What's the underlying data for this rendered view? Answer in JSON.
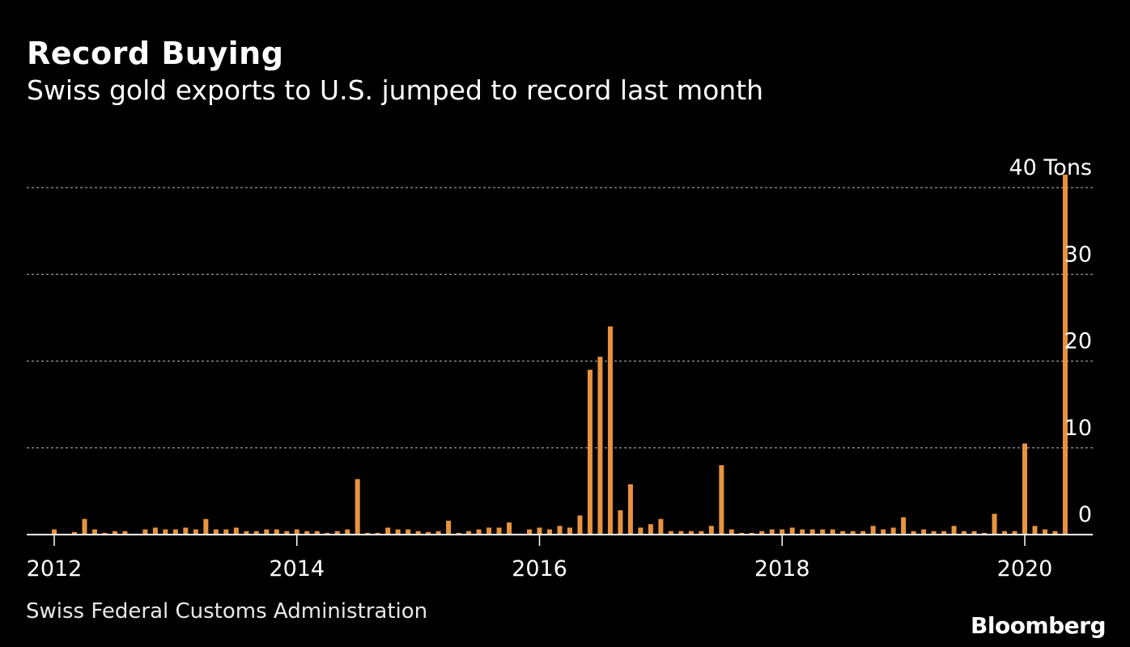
{
  "title": "Record Buying",
  "subtitle": "Swiss gold exports to U.S. jumped to record last month",
  "source": "Swiss Federal Customs Administration",
  "brand": "Bloomberg",
  "colors": {
    "background": "#000000",
    "bar": "#e8933f",
    "grid": "#9a9a9a",
    "text": "#ffffff"
  },
  "chart_data": {
    "type": "bar",
    "ylim": [
      0,
      40
    ],
    "yunit": "Tons",
    "yticks": [
      {
        "value": 40,
        "label": "40"
      },
      {
        "value": 30,
        "label": "30"
      },
      {
        "value": 20,
        "label": "20"
      },
      {
        "value": 10,
        "label": "10"
      },
      {
        "value": 0,
        "label": "0"
      }
    ],
    "xticks": [
      {
        "date": "2012-01",
        "label": "2012"
      },
      {
        "date": "2014-01",
        "label": "2014"
      },
      {
        "date": "2016-01",
        "label": "2016"
      },
      {
        "date": "2018-01",
        "label": "2018"
      },
      {
        "date": "2020-01",
        "label": "2020"
      }
    ],
    "grid": true,
    "series": [
      {
        "values": [
          {
            "date": "2012-01",
            "value": 0.6
          },
          {
            "date": "2012-02",
            "value": 0.1
          },
          {
            "date": "2012-03",
            "value": 0.3
          },
          {
            "date": "2012-04",
            "value": 1.8
          },
          {
            "date": "2012-05",
            "value": 0.6
          },
          {
            "date": "2012-06",
            "value": 0.2
          },
          {
            "date": "2012-07",
            "value": 0.4
          },
          {
            "date": "2012-08",
            "value": 0.4
          },
          {
            "date": "2012-09",
            "value": 0.1
          },
          {
            "date": "2012-10",
            "value": 0.6
          },
          {
            "date": "2012-11",
            "value": 0.8
          },
          {
            "date": "2012-12",
            "value": 0.6
          },
          {
            "date": "2013-01",
            "value": 0.6
          },
          {
            "date": "2013-02",
            "value": 0.8
          },
          {
            "date": "2013-03",
            "value": 0.6
          },
          {
            "date": "2013-04",
            "value": 1.8
          },
          {
            "date": "2013-05",
            "value": 0.6
          },
          {
            "date": "2013-06",
            "value": 0.6
          },
          {
            "date": "2013-07",
            "value": 0.8
          },
          {
            "date": "2013-08",
            "value": 0.4
          },
          {
            "date": "2013-09",
            "value": 0.4
          },
          {
            "date": "2013-10",
            "value": 0.6
          },
          {
            "date": "2013-11",
            "value": 0.6
          },
          {
            "date": "2013-12",
            "value": 0.4
          },
          {
            "date": "2014-01",
            "value": 0.6
          },
          {
            "date": "2014-02",
            "value": 0.4
          },
          {
            "date": "2014-03",
            "value": 0.4
          },
          {
            "date": "2014-04",
            "value": 0.2
          },
          {
            "date": "2014-05",
            "value": 0.4
          },
          {
            "date": "2014-06",
            "value": 0.6
          },
          {
            "date": "2014-07",
            "value": 6.4
          },
          {
            "date": "2014-08",
            "value": 0.2
          },
          {
            "date": "2014-09",
            "value": 0.2
          },
          {
            "date": "2014-10",
            "value": 0.8
          },
          {
            "date": "2014-11",
            "value": 0.6
          },
          {
            "date": "2014-12",
            "value": 0.6
          },
          {
            "date": "2015-01",
            "value": 0.4
          },
          {
            "date": "2015-02",
            "value": 0.3
          },
          {
            "date": "2015-03",
            "value": 0.4
          },
          {
            "date": "2015-04",
            "value": 1.6
          },
          {
            "date": "2015-05",
            "value": 0.2
          },
          {
            "date": "2015-06",
            "value": 0.4
          },
          {
            "date": "2015-07",
            "value": 0.6
          },
          {
            "date": "2015-08",
            "value": 0.8
          },
          {
            "date": "2015-09",
            "value": 0.8
          },
          {
            "date": "2015-10",
            "value": 1.4
          },
          {
            "date": "2015-11",
            "value": 0.1
          },
          {
            "date": "2015-12",
            "value": 0.6
          },
          {
            "date": "2016-01",
            "value": 0.8
          },
          {
            "date": "2016-02",
            "value": 0.6
          },
          {
            "date": "2016-03",
            "value": 1.0
          },
          {
            "date": "2016-04",
            "value": 0.8
          },
          {
            "date": "2016-05",
            "value": 2.2
          },
          {
            "date": "2016-06",
            "value": 19.0
          },
          {
            "date": "2016-07",
            "value": 20.5
          },
          {
            "date": "2016-08",
            "value": 24.0
          },
          {
            "date": "2016-09",
            "value": 2.8
          },
          {
            "date": "2016-10",
            "value": 5.8
          },
          {
            "date": "2016-11",
            "value": 0.8
          },
          {
            "date": "2016-12",
            "value": 1.2
          },
          {
            "date": "2017-01",
            "value": 1.8
          },
          {
            "date": "2017-02",
            "value": 0.4
          },
          {
            "date": "2017-03",
            "value": 0.4
          },
          {
            "date": "2017-04",
            "value": 0.4
          },
          {
            "date": "2017-05",
            "value": 0.4
          },
          {
            "date": "2017-06",
            "value": 1.0
          },
          {
            "date": "2017-07",
            "value": 8.0
          },
          {
            "date": "2017-08",
            "value": 0.6
          },
          {
            "date": "2017-09",
            "value": 0.2
          },
          {
            "date": "2017-10",
            "value": 0.2
          },
          {
            "date": "2017-11",
            "value": 0.4
          },
          {
            "date": "2017-12",
            "value": 0.6
          },
          {
            "date": "2018-01",
            "value": 0.6
          },
          {
            "date": "2018-02",
            "value": 0.8
          },
          {
            "date": "2018-03",
            "value": 0.6
          },
          {
            "date": "2018-04",
            "value": 0.6
          },
          {
            "date": "2018-05",
            "value": 0.6
          },
          {
            "date": "2018-06",
            "value": 0.6
          },
          {
            "date": "2018-07",
            "value": 0.4
          },
          {
            "date": "2018-08",
            "value": 0.4
          },
          {
            "date": "2018-09",
            "value": 0.4
          },
          {
            "date": "2018-10",
            "value": 1.0
          },
          {
            "date": "2018-11",
            "value": 0.6
          },
          {
            "date": "2018-12",
            "value": 0.8
          },
          {
            "date": "2019-01",
            "value": 2.0
          },
          {
            "date": "2019-02",
            "value": 0.4
          },
          {
            "date": "2019-03",
            "value": 0.6
          },
          {
            "date": "2019-04",
            "value": 0.4
          },
          {
            "date": "2019-05",
            "value": 0.4
          },
          {
            "date": "2019-06",
            "value": 1.0
          },
          {
            "date": "2019-07",
            "value": 0.4
          },
          {
            "date": "2019-08",
            "value": 0.4
          },
          {
            "date": "2019-09",
            "value": 0.2
          },
          {
            "date": "2019-10",
            "value": 2.4
          },
          {
            "date": "2019-11",
            "value": 0.4
          },
          {
            "date": "2019-12",
            "value": 0.4
          },
          {
            "date": "2020-01",
            "value": 10.5
          },
          {
            "date": "2020-02",
            "value": 1.0
          },
          {
            "date": "2020-03",
            "value": 0.6
          },
          {
            "date": "2020-04",
            "value": 0.4
          },
          {
            "date": "2020-05",
            "value": 41.5
          }
        ]
      }
    ]
  }
}
